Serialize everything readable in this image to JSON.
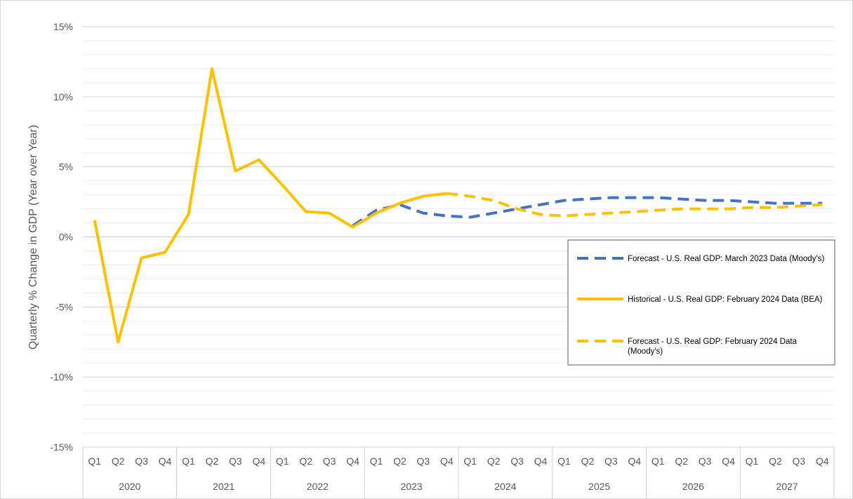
{
  "chart_data": {
    "type": "line",
    "ylabel": "Quarterly  % Change in GDP (Year over Year)",
    "xlabel": "",
    "ylim": [
      -15,
      15
    ],
    "y_ticks": [
      15,
      10,
      5,
      0,
      -5,
      -10,
      -15
    ],
    "y_tick_labels": [
      "15%",
      "10%",
      "5%",
      "0%",
      "-5%",
      "-10%",
      "-15%"
    ],
    "minor_gridlines_y": [
      14,
      13,
      12,
      11,
      9,
      8,
      7,
      6,
      4,
      3,
      2,
      1,
      -1,
      -2,
      -3,
      -4,
      -6,
      -7,
      -8,
      -9,
      -11,
      -12,
      -13,
      -14
    ],
    "grid": true,
    "years": [
      "2020",
      "2021",
      "2022",
      "2023",
      "2024",
      "2025",
      "2026",
      "2027"
    ],
    "quarters": [
      "Q1",
      "Q2",
      "Q3",
      "Q4"
    ],
    "categories": [
      "2020 Q1",
      "2020 Q2",
      "2020 Q3",
      "2020 Q4",
      "2021 Q1",
      "2021 Q2",
      "2021 Q3",
      "2021 Q4",
      "2022 Q1",
      "2022 Q2",
      "2022 Q3",
      "2022 Q4",
      "2023 Q1",
      "2023 Q2",
      "2023 Q3",
      "2023 Q4",
      "2024 Q1",
      "2024 Q2",
      "2024 Q3",
      "2024 Q4",
      "2025 Q1",
      "2025 Q2",
      "2025 Q3",
      "2025 Q4",
      "2026 Q1",
      "2026 Q2",
      "2026 Q3",
      "2026 Q4",
      "2027 Q1",
      "2027 Q2",
      "2027 Q3",
      "2027 Q4"
    ],
    "series": [
      {
        "name": "Forecast - U.S. Real GDP: March 2023 Data (Moody's)",
        "legend_label": "Forecast - U.S. Real GDP: March 2023 Data (Moody's)",
        "color": "#4472C4",
        "style": "dashed",
        "values": [
          null,
          null,
          null,
          null,
          null,
          null,
          null,
          null,
          null,
          null,
          null,
          0.8,
          1.9,
          2.3,
          1.7,
          1.5,
          1.4,
          1.7,
          2.0,
          2.3,
          2.6,
          2.7,
          2.8,
          2.8,
          2.8,
          2.7,
          2.6,
          2.6,
          2.5,
          2.4,
          2.4,
          2.4
        ]
      },
      {
        "name": "Historical - U.S. Real GDP: February 2024 Data (BEA)",
        "legend_label": "Historical - U.S. Real GDP: February 2024 Data (BEA)",
        "color": "#FFC000",
        "style": "solid",
        "values": [
          1.2,
          -7.5,
          -1.5,
          -1.1,
          1.6,
          12.0,
          4.7,
          5.5,
          3.7,
          1.8,
          1.7,
          0.7,
          1.7,
          2.4,
          2.9,
          3.1,
          null,
          null,
          null,
          null,
          null,
          null,
          null,
          null,
          null,
          null,
          null,
          null,
          null,
          null,
          null,
          null
        ]
      },
      {
        "name": "Forecast - U.S. Real GDP: February 2024 Data (Moody's)",
        "legend_label": "Forecast - U.S. Real GDP: February 2024 Data (Moody's)",
        "color": "#FFC000",
        "style": "dashed",
        "values": [
          null,
          null,
          null,
          null,
          null,
          null,
          null,
          null,
          null,
          null,
          null,
          null,
          null,
          null,
          null,
          3.1,
          2.9,
          2.6,
          2.0,
          1.6,
          1.5,
          1.6,
          1.7,
          1.8,
          1.9,
          2.0,
          2.0,
          2.0,
          2.1,
          2.1,
          2.2,
          2.3
        ]
      }
    ],
    "legend_position": "right"
  }
}
